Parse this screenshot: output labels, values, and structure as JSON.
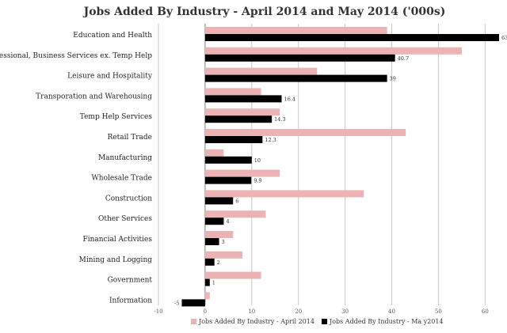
{
  "chart_data": {
    "type": "bar",
    "orientation": "horizontal",
    "title": "Jobs Added By Industry - April 2014 and May 2014 ('000s)",
    "categories": [
      "Education and Health",
      "Professional, Business Services ex. Temp Help",
      "Leisure and Hospitality",
      "Transporation and Warehousing",
      "Temp Help Services",
      "Retail Trade",
      "Manufacturing",
      "Wholesale Trade",
      "Construction",
      "Other Services",
      "Financial Activities",
      "Mining and Logging",
      "Government",
      "Information"
    ],
    "series": [
      {
        "name": "Jobs Added By Industry - April 2014",
        "color": "#ebb3b3",
        "values": [
          39,
          55,
          24,
          12,
          16,
          43,
          4,
          16,
          34,
          13,
          6,
          8,
          12,
          1
        ],
        "labels": [
          "",
          "",
          "",
          "",
          "",
          "",
          "",
          "",
          "",
          "",
          "",
          "",
          "",
          ""
        ]
      },
      {
        "name": "Jobs Added By Industry - Ma y2014",
        "color": "#000000",
        "values": [
          63,
          40.7,
          39,
          16.4,
          14.3,
          12.3,
          10,
          9.9,
          6,
          4,
          3,
          2,
          1,
          -5
        ],
        "labels": [
          "63",
          "40.7",
          "39",
          "16.4",
          "14.3",
          "12.3",
          "10",
          "9.9",
          "6",
          "4",
          "3",
          "2",
          "1",
          "-5"
        ]
      }
    ],
    "x_ticks": [
      -10,
      0,
      10,
      20,
      30,
      40,
      50,
      60
    ],
    "xlim": [
      -10,
      63
    ],
    "grid": true,
    "legend_position": "bottom"
  }
}
